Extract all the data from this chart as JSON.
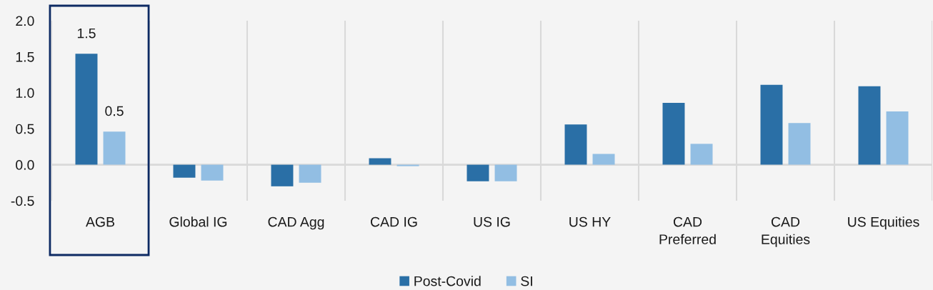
{
  "chart_data": {
    "type": "bar",
    "categories": [
      "AGB",
      "Global IG",
      "CAD Agg",
      "CAD IG",
      "US IG",
      "US HY",
      "CAD\nPreferred",
      "CAD\nEquities",
      "US Equities"
    ],
    "series": [
      {
        "name": "Post-Covid",
        "color": "#2a6fa6",
        "values": [
          1.54,
          -0.18,
          -0.3,
          0.09,
          -0.23,
          0.56,
          0.86,
          1.11,
          1.09
        ],
        "value_labels": [
          "1.5",
          null,
          null,
          null,
          null,
          null,
          null,
          null,
          null
        ]
      },
      {
        "name": "SI",
        "color": "#92bee3",
        "values": [
          0.46,
          -0.22,
          -0.25,
          -0.02,
          -0.23,
          0.15,
          0.29,
          0.58,
          0.74
        ],
        "value_labels": [
          "0.5",
          null,
          null,
          null,
          null,
          null,
          null,
          null,
          null
        ]
      }
    ],
    "ylim": [
      -0.5,
      2.0
    ],
    "yticks": [
      {
        "value": -0.5,
        "label": "-0.5"
      },
      {
        "value": 0,
        "label": "0.0"
      },
      {
        "value": 0.5,
        "label": "0.5"
      },
      {
        "value": 1,
        "label": "1.0"
      },
      {
        "value": 1.5,
        "label": "1.5"
      },
      {
        "value": 2,
        "label": "2.0"
      }
    ],
    "grid": "x",
    "legend": "bottom"
  }
}
